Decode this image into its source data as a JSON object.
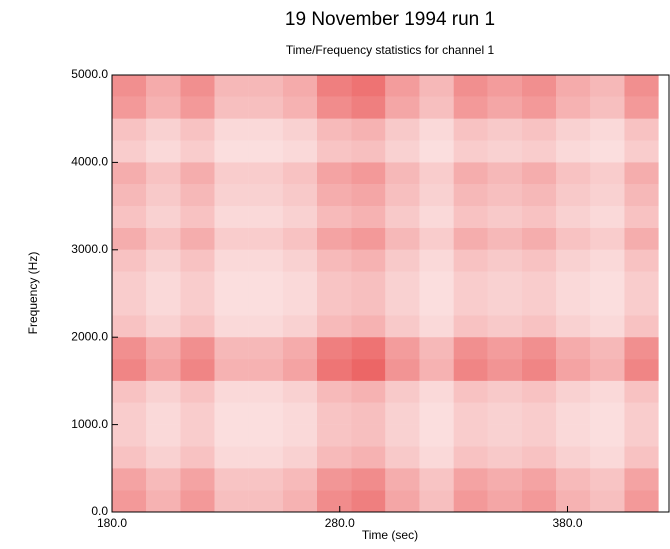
{
  "chart_data": {
    "type": "heatmap",
    "title": "19 November 1994 run 1",
    "subtitle": "Time/Frequency statistics for channel 1",
    "xlabel": "Time (sec)",
    "ylabel": "Frequency (Hz)",
    "color": "#e00000",
    "xbins": [
      180,
      195,
      210,
      225,
      240,
      255,
      270,
      285,
      300,
      315,
      330,
      345,
      360,
      375,
      390,
      405,
      420
    ],
    "ybins": [
      0,
      250,
      500,
      750,
      1000,
      1250,
      1500,
      1750,
      2000,
      2250,
      2500,
      2750,
      3000,
      3250,
      3500,
      3750,
      4000,
      4250,
      4500,
      4750,
      5000
    ],
    "values": [
      [
        40,
        30,
        40,
        25,
        25,
        30,
        45,
        50,
        35,
        25,
        40,
        35,
        40,
        30,
        25,
        40
      ],
      [
        36,
        27,
        36,
        23,
        23,
        27,
        41,
        45,
        32,
        23,
        36,
        32,
        36,
        27,
        23,
        36
      ],
      [
        24,
        18,
        24,
        15,
        15,
        18,
        27,
        30,
        21,
        15,
        24,
        21,
        24,
        18,
        15,
        24
      ],
      [
        20,
        15,
        20,
        13,
        13,
        15,
        23,
        25,
        18,
        13,
        20,
        18,
        20,
        15,
        13,
        20
      ],
      [
        20,
        15,
        20,
        13,
        13,
        15,
        23,
        25,
        18,
        13,
        20,
        18,
        20,
        15,
        13,
        20
      ],
      [
        24,
        18,
        24,
        15,
        15,
        18,
        27,
        30,
        21,
        15,
        24,
        21,
        24,
        18,
        15,
        24
      ],
      [
        48,
        36,
        48,
        30,
        30,
        36,
        54,
        60,
        42,
        30,
        48,
        42,
        48,
        36,
        30,
        48
      ],
      [
        44,
        33,
        44,
        28,
        28,
        33,
        50,
        55,
        39,
        28,
        44,
        39,
        44,
        33,
        28,
        44
      ],
      [
        24,
        18,
        24,
        15,
        15,
        18,
        27,
        30,
        21,
        15,
        24,
        21,
        24,
        18,
        15,
        24
      ],
      [
        20,
        15,
        20,
        13,
        13,
        15,
        23,
        25,
        18,
        13,
        20,
        18,
        20,
        15,
        13,
        20
      ],
      [
        20,
        15,
        20,
        13,
        13,
        15,
        23,
        25,
        18,
        13,
        20,
        18,
        20,
        15,
        13,
        20
      ],
      [
        24,
        18,
        24,
        15,
        15,
        18,
        27,
        30,
        21,
        15,
        24,
        21,
        24,
        18,
        15,
        24
      ],
      [
        32,
        24,
        32,
        20,
        20,
        24,
        36,
        40,
        28,
        20,
        32,
        28,
        32,
        24,
        20,
        32
      ],
      [
        24,
        18,
        24,
        15,
        15,
        18,
        27,
        30,
        21,
        15,
        24,
        21,
        24,
        18,
        15,
        24
      ],
      [
        28,
        21,
        28,
        18,
        18,
        21,
        32,
        35,
        25,
        18,
        28,
        25,
        28,
        21,
        18,
        28
      ],
      [
        32,
        24,
        32,
        20,
        20,
        24,
        36,
        40,
        28,
        20,
        32,
        28,
        32,
        24,
        20,
        32
      ],
      [
        20,
        15,
        20,
        13,
        13,
        15,
        23,
        25,
        18,
        13,
        20,
        18,
        20,
        15,
        13,
        20
      ],
      [
        24,
        18,
        24,
        15,
        15,
        18,
        27,
        30,
        21,
        15,
        24,
        21,
        24,
        18,
        15,
        24
      ],
      [
        40,
        30,
        40,
        25,
        25,
        30,
        45,
        50,
        35,
        25,
        40,
        35,
        40,
        30,
        25,
        40
      ],
      [
        44,
        33,
        44,
        28,
        28,
        33,
        50,
        55,
        39,
        28,
        44,
        39,
        44,
        33,
        28,
        44
      ]
    ],
    "xlim": [
      180,
      425
    ],
    "ylim": [
      0,
      5000
    ],
    "xticks": [
      {
        "value": 180,
        "label": "180.0"
      },
      {
        "value": 280,
        "label": "280.0"
      },
      {
        "value": 380,
        "label": "380.0"
      }
    ],
    "yticks": [
      {
        "value": 0,
        "label": "0.0"
      },
      {
        "value": 1000,
        "label": "1000.0"
      },
      {
        "value": 2000,
        "label": "2000.0"
      },
      {
        "value": 3000,
        "label": "3000.0"
      },
      {
        "value": 4000,
        "label": "4000.0"
      },
      {
        "value": 5000,
        "label": "5000.0"
      }
    ]
  }
}
